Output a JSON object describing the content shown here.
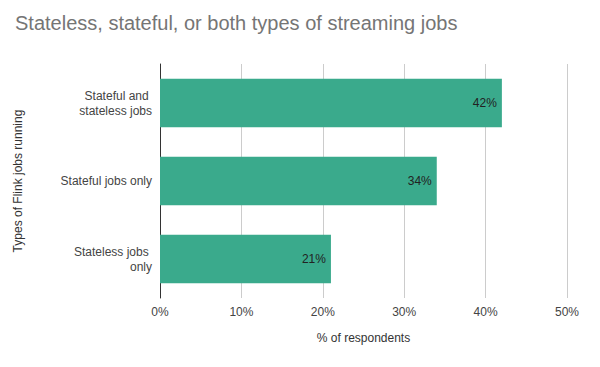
{
  "chart_data": {
    "type": "bar",
    "orientation": "horizontal",
    "title": "Stateless, stateful, or both types of streaming jobs",
    "x_label": "% of respondents",
    "y_label": "Types of Flink jobs running",
    "categories": [
      "Stateful and stateless jobs",
      "Stateful jobs only",
      "Stateless jobs only"
    ],
    "values": [
      42,
      34,
      21
    ],
    "value_labels": [
      "42%",
      "34%",
      "21%"
    ],
    "color": "#3aaa8c",
    "xlim": [
      0,
      50
    ],
    "xticks": [
      {
        "value": 0,
        "label": "0%"
      },
      {
        "value": 10,
        "label": "10%"
      },
      {
        "value": 20,
        "label": "20%"
      },
      {
        "value": 30,
        "label": "30%"
      },
      {
        "value": 40,
        "label": "40%"
      },
      {
        "value": 50,
        "label": "50%"
      }
    ],
    "grid": true,
    "data_labels": true
  }
}
